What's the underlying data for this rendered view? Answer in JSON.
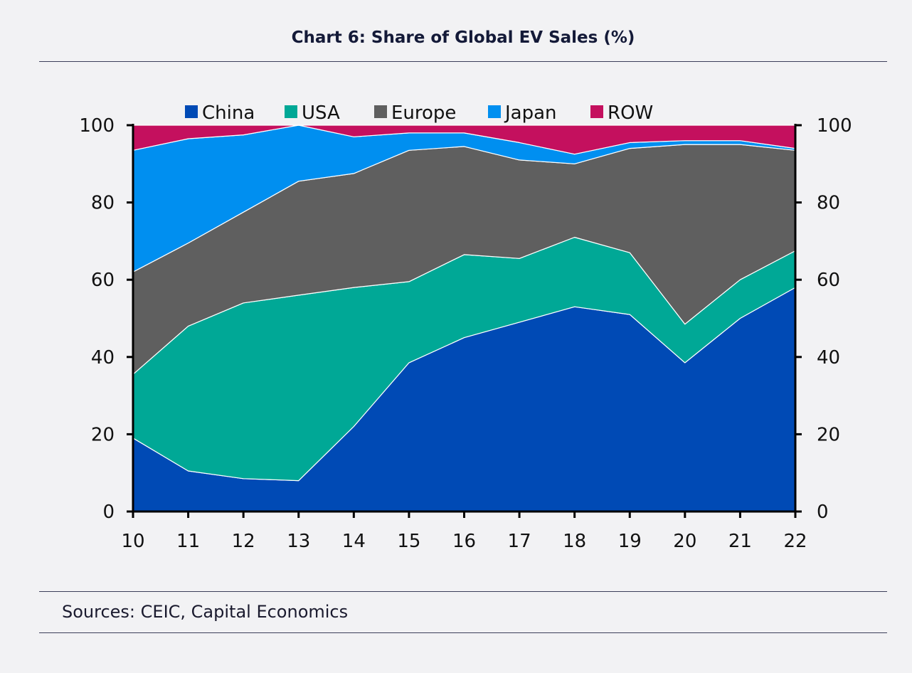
{
  "title": "Chart 6: Share of Global EV Sales (%)",
  "source": "Sources: CEIC, Capital Economics",
  "colors": {
    "China": "#004ab5",
    "USA": "#00a896",
    "Europe": "#5f5f5f",
    "Japan": "#008ff0",
    "ROW": "#c4105e"
  },
  "chart_data": {
    "type": "area",
    "stacked": true,
    "title": "Chart 6: Share of Global EV Sales (%)",
    "x": [
      "10",
      "11",
      "12",
      "13",
      "14",
      "15",
      "16",
      "17",
      "18",
      "19",
      "20",
      "21",
      "22"
    ],
    "ylim": [
      0,
      100
    ],
    "yticks": [
      0,
      20,
      40,
      60,
      80,
      100
    ],
    "y2ticks": [
      0,
      20,
      40,
      60,
      80,
      100
    ],
    "legend_position": "top",
    "series": [
      {
        "name": "China",
        "values": [
          19,
          10.5,
          8.5,
          8,
          22,
          38.5,
          45,
          49,
          53,
          51,
          38.5,
          50,
          58
        ]
      },
      {
        "name": "USA",
        "values": [
          16.5,
          37.5,
          45.5,
          48,
          36,
          21,
          21.5,
          16.5,
          18,
          16,
          10,
          10,
          9.5
        ]
      },
      {
        "name": "Europe",
        "values": [
          26.5,
          21.5,
          23.5,
          29.5,
          29.5,
          34,
          28,
          25.5,
          19,
          27,
          46.5,
          35,
          26
        ]
      },
      {
        "name": "Japan",
        "values": [
          31.5,
          27,
          20,
          14.5,
          9.5,
          4.5,
          3.5,
          4.5,
          2.5,
          1.5,
          1,
          1,
          0.5
        ]
      },
      {
        "name": "ROW",
        "values": [
          6.5,
          3.5,
          2.5,
          0,
          3,
          2,
          2,
          4.5,
          7.5,
          4.5,
          4,
          4,
          6
        ]
      }
    ]
  }
}
